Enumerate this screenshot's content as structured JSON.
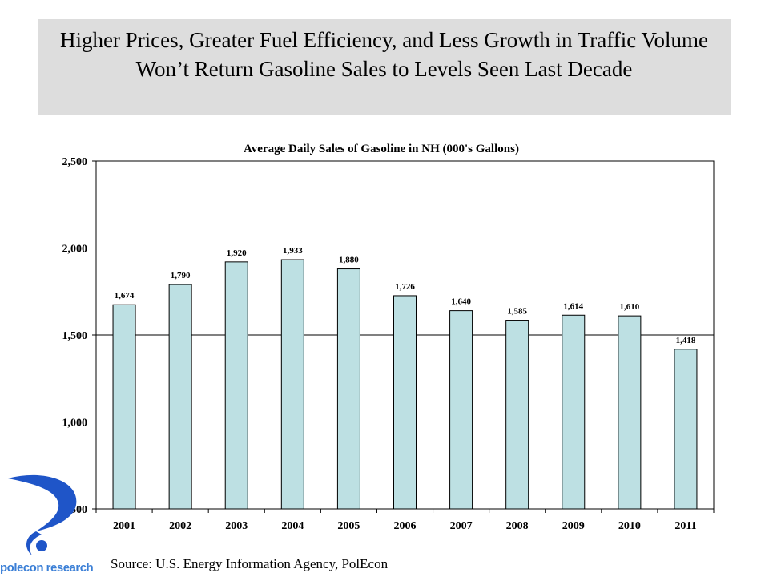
{
  "header": {
    "title": "Higher Prices, Greater Fuel Efficiency, and Less Growth in Traffic Volume Won’t Return Gasoline Sales to Levels Seen Last Decade"
  },
  "chart_data": {
    "type": "bar",
    "title": "Average Daily Sales of Gasoline in NH (000's Gallons)",
    "xlabel": "",
    "ylabel": "",
    "categories": [
      "2001",
      "2002",
      "2003",
      "2004",
      "2005",
      "2006",
      "2007",
      "2008",
      "2009",
      "2010",
      "2011"
    ],
    "values": [
      1674,
      1790,
      1920,
      1933,
      1880,
      1726,
      1640,
      1585,
      1614,
      1610,
      1418
    ],
    "value_labels": [
      "1,674",
      "1,790",
      "1,920",
      "1,933",
      "1,880",
      "1,726",
      "1,640",
      "1,585",
      "1,614",
      "1,610",
      "1,418"
    ],
    "ylim": [
      500,
      2500
    ],
    "yticks": [
      500,
      1000,
      1500,
      2000,
      2500
    ],
    "ytick_labels": [
      "500",
      "1,000",
      "1,500",
      "2,000",
      "2,500"
    ],
    "grid": true,
    "legend": "none",
    "bar_color": "#bde0e3",
    "bar_edge_color": "#000000"
  },
  "footer": {
    "source": "Source: U.S. Energy Information Agency, PolEcon"
  },
  "logo": {
    "text": "polecon research",
    "color": "#1f55c8"
  }
}
